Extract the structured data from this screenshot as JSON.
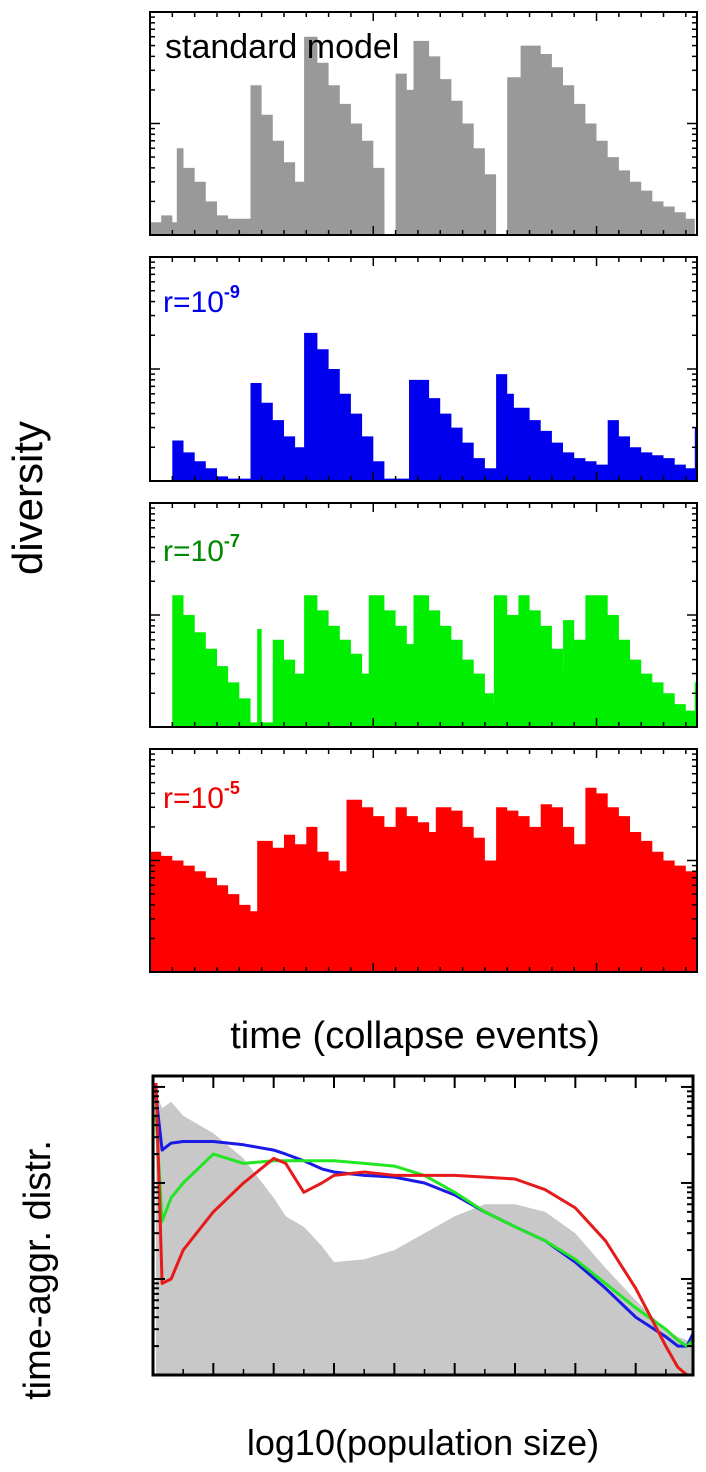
{
  "figure": {
    "top_ylabel": "diversity",
    "top_xlabel": "time (collapse events)",
    "bottom_ylabel": "time-aggr. distr.",
    "bottom_xlabel": "log10(population size)"
  },
  "chart_data": [
    {
      "type": "area",
      "panel_label": "standard model",
      "color": "#999999",
      "label_color": "#000000",
      "yscale": "log",
      "ylim": [
        1,
        100
      ],
      "xlim": [
        10000,
        34500
      ],
      "y_ticks": [
        "1",
        "10"
      ],
      "x_ticks": [],
      "series": [
        {
          "x": [
            10000,
            10500,
            11000,
            11200,
            11201,
            11500,
            12000,
            12500,
            13000,
            13500,
            14000,
            14500,
            14501,
            15000,
            15500,
            16000,
            16500,
            16900,
            16901,
            17500,
            18000,
            18500,
            19000,
            19500,
            20000,
            20500,
            20501,
            21000,
            21500,
            21800,
            21801,
            22500,
            23000,
            23500,
            24000,
            24500,
            25000,
            25500,
            25501,
            26000,
            26600,
            26601,
            27500,
            28000,
            28500,
            29000,
            29500,
            30000,
            30500,
            31000,
            31500,
            32000,
            32500,
            33000,
            33500,
            34000,
            34400
          ],
          "y": [
            1.3,
            1.5,
            1.3,
            1.3,
            6.0,
            4.0,
            3.0,
            2.0,
            1.5,
            1.4,
            1.4,
            1.0,
            22,
            12,
            7,
            4.5,
            3.0,
            2.2,
            60,
            35,
            22,
            15,
            10,
            7,
            4,
            2,
            1.0,
            28,
            20,
            14,
            55,
            40,
            25,
            16,
            10,
            6,
            3.5,
            2.0,
            1.0,
            26,
            20,
            50,
            42,
            32,
            22,
            15,
            10,
            7,
            5,
            3.8,
            3.0,
            2.5,
            2.0,
            1.8,
            1.6,
            1.4,
            1.4
          ]
        }
      ]
    },
    {
      "type": "area",
      "panel_label": "r=10",
      "panel_label_exp": "-9",
      "color": "#0000ee",
      "label_color": "#0000ee",
      "yscale": "log",
      "ylim": [
        1,
        100
      ],
      "xlim": [
        10000,
        34500
      ],
      "y_ticks": [
        "1",
        "10"
      ],
      "x_ticks": [],
      "series": [
        {
          "x": [
            10000,
            11000,
            11001,
            11500,
            12000,
            12500,
            13000,
            13500,
            14000,
            14500,
            14501,
            15000,
            15500,
            16000,
            16500,
            16900,
            16901,
            17500,
            18000,
            18500,
            19000,
            19500,
            20000,
            20500,
            20501,
            21000,
            21500,
            21600,
            21601,
            22500,
            23000,
            23500,
            24000,
            24500,
            25000,
            25500,
            25501,
            26000,
            26300,
            26301,
            27000,
            27500,
            28000,
            28500,
            29000,
            29500,
            30000,
            30500,
            30501,
            31000,
            31500,
            32000,
            32500,
            33000,
            33500,
            34000,
            34400,
            34401,
            34500
          ],
          "y": [
            1.0,
            1.0,
            2.3,
            1.8,
            1.5,
            1.3,
            1.1,
            1.05,
            1.05,
            1.05,
            7.5,
            5.0,
            3.5,
            2.5,
            2.0,
            1.6,
            21,
            15,
            10,
            6,
            4,
            2.5,
            1.5,
            1.05,
            1.05,
            1.05,
            1.05,
            1.05,
            8.0,
            5.5,
            4.0,
            3.0,
            2.2,
            1.6,
            1.3,
            1.2,
            9.0,
            6.0,
            4.5,
            4.5,
            3.5,
            2.8,
            2.2,
            1.8,
            1.6,
            1.5,
            1.4,
            1.4,
            3.5,
            2.5,
            2.0,
            1.8,
            1.7,
            1.6,
            1.4,
            1.3,
            1.3,
            3.0,
            2.8
          ]
        }
      ]
    },
    {
      "type": "area",
      "panel_label": "r=10",
      "panel_label_exp": "-7",
      "color": "#00ee00",
      "label_color": "#008800",
      "yscale": "log",
      "ylim": [
        1,
        100
      ],
      "xlim": [
        10000,
        34500
      ],
      "y_ticks": [
        "1",
        "10"
      ],
      "x_ticks": [],
      "series": [
        {
          "x": [
            10000,
            11000,
            11001,
            11500,
            12000,
            12500,
            13000,
            13500,
            14000,
            14500,
            14501,
            14800,
            15000,
            15001,
            15500,
            16000,
            16500,
            16900,
            16901,
            17500,
            18000,
            18500,
            19000,
            19500,
            19800,
            19801,
            20500,
            21000,
            21500,
            21800,
            21801,
            22500,
            23000,
            23500,
            24000,
            24500,
            25000,
            25400,
            25401,
            26000,
            26500,
            26501,
            27000,
            27500,
            28000,
            28500,
            28501,
            29000,
            29500,
            29501,
            30500,
            31000,
            31500,
            32000,
            32500,
            33000,
            33500,
            34000,
            34400,
            34401,
            34500
          ],
          "y": [
            1.0,
            1.0,
            15,
            10,
            7,
            5,
            3.5,
            2.5,
            1.8,
            1.1,
            1.1,
            7.5,
            5.5,
            1.1,
            6.0,
            4.0,
            3.0,
            2.2,
            15,
            11,
            8,
            6,
            4.5,
            3.0,
            2.5,
            15,
            11,
            8,
            5.5,
            4.0,
            15,
            11,
            8,
            6,
            4.0,
            3.0,
            2.0,
            1.5,
            15,
            10,
            8,
            15,
            11,
            8,
            5,
            3.2,
            9,
            6,
            4,
            15,
            10,
            6,
            4,
            3,
            2.5,
            2,
            1.6,
            1.4,
            1.3,
            2.5,
            2.5
          ]
        }
      ]
    },
    {
      "type": "area",
      "panel_label": "r=10",
      "panel_label_exp": "-5",
      "color": "#ff0000",
      "label_color": "#ee0000",
      "yscale": "log",
      "ylim": [
        1,
        100
      ],
      "xlim": [
        10000,
        34500
      ],
      "y_ticks": [
        "1",
        "10"
      ],
      "x_ticks": [
        "10000",
        "20000",
        "30000"
      ],
      "series": [
        {
          "x": [
            10000,
            10500,
            11000,
            11500,
            12000,
            12500,
            13000,
            13500,
            14000,
            14500,
            14800,
            14801,
            15500,
            16000,
            16500,
            17000,
            17500,
            18000,
            18500,
            18800,
            18801,
            19500,
            20000,
            20500,
            21000,
            21500,
            22000,
            22500,
            22800,
            22801,
            23500,
            24000,
            24500,
            25000,
            25500,
            25501,
            26000,
            26500,
            27000,
            27500,
            28000,
            28500,
            29000,
            29500,
            29501,
            30000,
            30500,
            31000,
            31500,
            32000,
            32500,
            33000,
            33500,
            34000,
            34500
          ],
          "y": [
            12,
            11,
            10,
            9,
            8,
            7,
            6,
            5,
            4,
            3.5,
            3.0,
            15,
            13,
            17,
            14,
            20,
            12,
            10,
            8,
            5,
            35,
            30,
            25,
            20,
            30,
            25,
            22,
            18,
            15,
            30,
            28,
            20,
            16,
            10,
            6,
            30,
            28,
            25,
            20,
            32,
            30,
            20,
            14,
            10,
            45,
            40,
            30,
            25,
            18,
            15,
            12,
            10,
            9,
            8,
            8
          ]
        }
      ]
    },
    {
      "type": "line",
      "yscale": "log",
      "ylim": [
        0.001,
        1.3
      ],
      "xlim": [
        -9.0,
        -0.05
      ],
      "y_ticks": [
        "0.001",
        "0.01",
        "0.1",
        "1"
      ],
      "x_ticks": [
        "-8",
        "-7",
        "-6",
        "-5",
        "-4",
        "-3",
        "-2",
        "-1"
      ],
      "annotation": "standard model",
      "x": [
        -8.95,
        -8.85,
        -8.7,
        -8.5,
        -8.0,
        -7.5,
        -7.0,
        -6.8,
        -6.5,
        -6.2,
        -6.0,
        -5.5,
        -5.0,
        -4.5,
        -4.0,
        -3.5,
        -3.0,
        -2.5,
        -2.0,
        -1.5,
        -1.0,
        -0.5,
        -0.3,
        -0.15,
        -0.05
      ],
      "series": [
        {
          "color": "#c8c8c8",
          "fill": true,
          "values": [
            0.9,
            0.6,
            0.7,
            0.5,
            0.33,
            0.18,
            0.07,
            0.045,
            0.035,
            0.022,
            0.015,
            0.016,
            0.02,
            0.03,
            0.045,
            0.06,
            0.06,
            0.05,
            0.03,
            0.013,
            0.006,
            0.003,
            0.0025,
            0.0023,
            0.0022
          ]
        },
        {
          "color": "#1a1ae6",
          "fill": false,
          "values": [
            0.8,
            0.22,
            0.26,
            0.27,
            0.27,
            0.25,
            0.22,
            0.2,
            0.17,
            0.14,
            0.13,
            0.12,
            0.115,
            0.1,
            0.075,
            0.05,
            0.035,
            0.025,
            0.015,
            0.008,
            0.004,
            0.0025,
            0.002,
            0.002,
            0.0027
          ]
        },
        {
          "color": "#22e622",
          "fill": false,
          "values": [
            0.5,
            0.04,
            0.07,
            0.1,
            0.2,
            0.16,
            0.17,
            0.17,
            0.17,
            0.17,
            0.17,
            0.16,
            0.15,
            0.12,
            0.08,
            0.05,
            0.035,
            0.025,
            0.016,
            0.009,
            0.005,
            0.003,
            0.0023,
            0.002,
            0.0023
          ]
        },
        {
          "color": "#e61a1a",
          "fill": false,
          "values": [
            1.1,
            0.009,
            0.01,
            0.02,
            0.05,
            0.1,
            0.18,
            0.16,
            0.08,
            0.1,
            0.12,
            0.13,
            0.12,
            0.12,
            0.12,
            0.115,
            0.11,
            0.085,
            0.055,
            0.025,
            0.008,
            0.002,
            0.0012,
            0.0008,
            0.0007
          ]
        }
      ]
    }
  ]
}
